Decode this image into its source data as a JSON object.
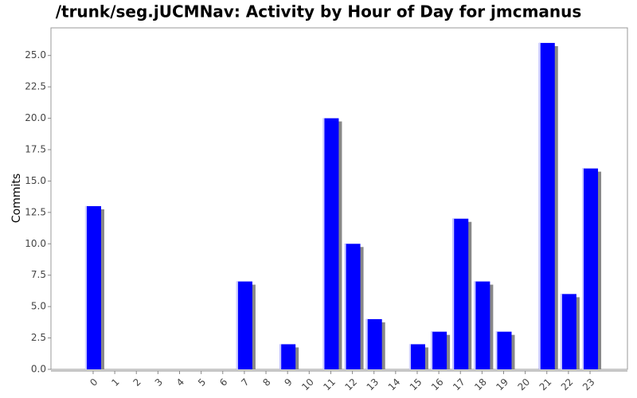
{
  "chart_data": {
    "type": "bar",
    "title": "/trunk/seg.jUCMNav: Activity by Hour of Day for jmcmanus",
    "y_label": "Commits",
    "categories": [
      "0",
      "1",
      "2",
      "3",
      "4",
      "5",
      "6",
      "7",
      "8",
      "9",
      "10",
      "11",
      "12",
      "13",
      "14",
      "15",
      "16",
      "17",
      "18",
      "19",
      "20",
      "21",
      "22",
      "23"
    ],
    "values": [
      13,
      0,
      0,
      0,
      0,
      0,
      0,
      7,
      0,
      2,
      0,
      20,
      10,
      4,
      0,
      2,
      3,
      12,
      7,
      3,
      0,
      26,
      6,
      16
    ],
    "color": "#0000ff",
    "ylim": [
      0,
      27.2
    ],
    "yticks": [
      {
        "value": 0,
        "label": "0.0"
      },
      {
        "value": 2.5,
        "label": "2.5"
      },
      {
        "value": 5,
        "label": "5.0"
      },
      {
        "value": 7.5,
        "label": "7.5"
      },
      {
        "value": 10,
        "label": "10.0"
      },
      {
        "value": 12.5,
        "label": "12.5"
      },
      {
        "value": 15,
        "label": "15.0"
      },
      {
        "value": 17.5,
        "label": "17.5"
      },
      {
        "value": 20,
        "label": "20.0"
      },
      {
        "value": 22.5,
        "label": "22.5"
      },
      {
        "value": 25,
        "label": "25.0"
      }
    ],
    "grid": false
  }
}
